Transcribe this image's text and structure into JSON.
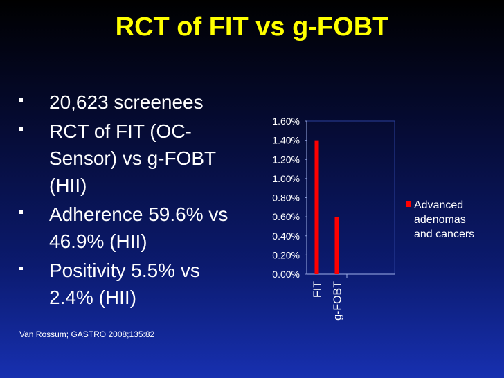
{
  "slide": {
    "title": "RCT of FIT vs g-FOBT",
    "bullets": [
      "20,623 screenees",
      "RCT of FIT (OC-Sensor) vs g-FOBT (HII)",
      "Adherence 59.6% vs 46.9% (HII)",
      "Positivity 5.5% vs 2.4% (HII)"
    ],
    "citation": "Van Rossum; GASTRO 2008;135:82"
  },
  "chart_data": {
    "type": "bar",
    "categories": [
      "FIT",
      "g-FOBT"
    ],
    "series": [
      {
        "name": "Advanced adenomas and cancers",
        "values": [
          1.4,
          0.6
        ],
        "color": "#ff0000"
      }
    ],
    "yticks": [
      "0.00%",
      "0.20%",
      "0.40%",
      "0.60%",
      "0.80%",
      "1.00%",
      "1.20%",
      "1.40%",
      "1.60%"
    ],
    "ylim": [
      0,
      1.6
    ],
    "legend_position": "right",
    "grid": false
  }
}
